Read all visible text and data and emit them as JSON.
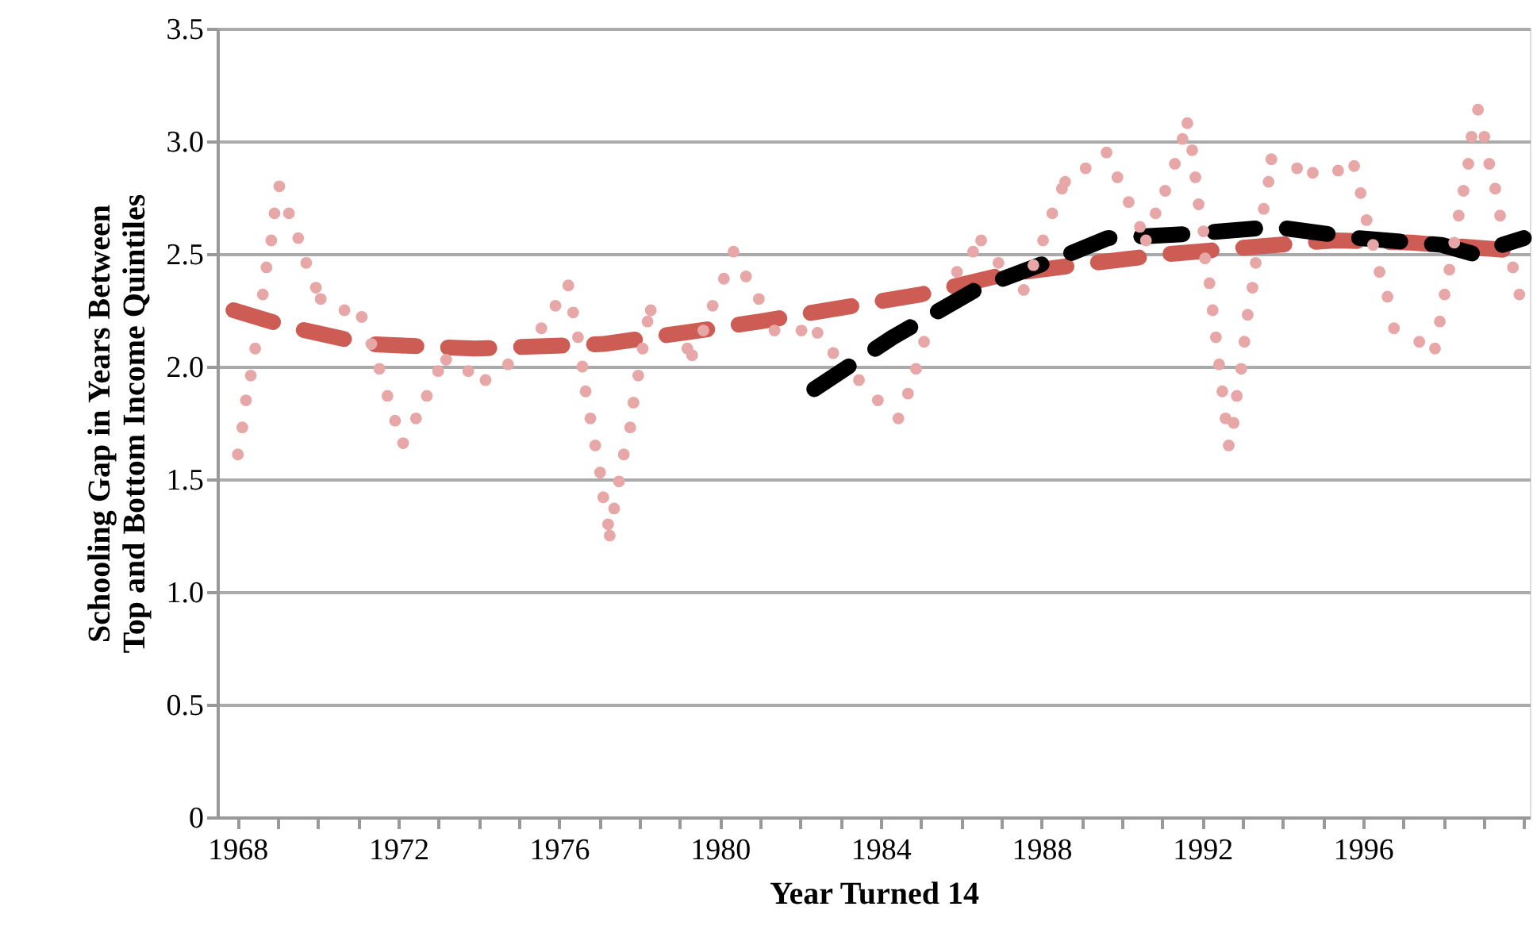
{
  "chart_data": {
    "type": "line",
    "xlabel": "Year Turned 14",
    "ylabel": "Schooling Gap in Years Between\nTop and Bottom Income Quintiles",
    "xlim": [
      1967.5,
      2000.15
    ],
    "xticks": [
      1968,
      {
        "value": 1969,
        "label": null
      },
      {
        "value": 1970,
        "label": null
      },
      {
        "value": 1971,
        "label": null
      },
      1972,
      {
        "value": 1973,
        "label": null
      },
      {
        "value": 1974,
        "label": null
      },
      {
        "value": 1975,
        "label": null
      },
      1976,
      {
        "value": 1977,
        "label": null
      },
      {
        "value": 1978,
        "label": null
      },
      {
        "value": 1979,
        "label": null
      },
      1980,
      {
        "value": 1981,
        "label": null
      },
      {
        "value": 1982,
        "label": null
      },
      {
        "value": 1983,
        "label": null
      },
      1984,
      {
        "value": 1985,
        "label": null
      },
      {
        "value": 1986,
        "label": null
      },
      {
        "value": 1987,
        "label": null
      },
      1988,
      {
        "value": 1989,
        "label": null
      },
      {
        "value": 1990,
        "label": null
      },
      {
        "value": 1991,
        "label": null
      },
      1992,
      {
        "value": 1993,
        "label": null
      },
      {
        "value": 1994,
        "label": null
      },
      {
        "value": 1995,
        "label": null
      },
      1996,
      {
        "value": 1997,
        "label": null
      },
      {
        "value": 1998,
        "label": null
      },
      {
        "value": 1999,
        "label": null
      },
      {
        "value": 2000,
        "label": null
      }
    ],
    "ylim": [
      0,
      3.5
    ],
    "yticks": [
      0,
      0.5,
      {
        "value": 1,
        "label": "1.0"
      },
      1.5,
      {
        "value": 2,
        "label": "2.0"
      },
      2.5,
      {
        "value": 3,
        "label": "3.0"
      },
      3.5
    ],
    "grid": "y",
    "series": [
      {
        "type": "scatter",
        "marker": "circle",
        "color": "#e8a7a7",
        "x": [
          1968.01,
          1968.12,
          1968.21,
          1968.33,
          1968.44,
          1968.63,
          1968.72,
          1968.84,
          1968.92,
          1969.04,
          1969.28,
          1969.51,
          1969.71,
          1969.95,
          1970.07,
          1970.66,
          1971.09,
          1971.33,
          1971.53,
          1971.73,
          1971.92,
          1972.12,
          1972.44,
          1972.71,
          1972.99,
          1973.19,
          1973.74,
          1974.17,
          1974.73,
          1975.56,
          1975.91,
          1976.23,
          1976.35,
          1976.47,
          1976.58,
          1976.66,
          1976.78,
          1976.9,
          1977.02,
          1977.1,
          1977.22,
          1977.26,
          1977.37,
          1977.49,
          1977.61,
          1977.77,
          1977.85,
          1977.97,
          1978.08,
          1978.2,
          1978.28,
          1979.19,
          1979.31,
          1979.59,
          1979.82,
          1980.1,
          1980.34,
          1980.65,
          1980.97,
          1981.36,
          1982.03,
          1982.43,
          1982.82,
          1983.46,
          1983.93,
          1984.44,
          1984.68,
          1984.88,
          1985.08,
          1985.9,
          1986.3,
          1986.5,
          1986.93,
          1987.56,
          1987.8,
          1988.04,
          1988.27,
          1988.51,
          1988.59,
          1989.1,
          1989.62,
          1989.89,
          1990.17,
          1990.45,
          1990.6,
          1990.84,
          1991.08,
          1991.32,
          1991.51,
          1991.63,
          1991.75,
          1991.83,
          1991.91,
          1992.03,
          1992.07,
          1992.18,
          1992.26,
          1992.34,
          1992.42,
          1992.5,
          1992.58,
          1992.66,
          1992.78,
          1992.86,
          1992.97,
          1993.05,
          1993.13,
          1993.25,
          1993.33,
          1993.53,
          1993.65,
          1993.72,
          1994.36,
          1994.75,
          1995.38,
          1995.78,
          1995.94,
          1996.09,
          1996.25,
          1996.41,
          1996.61,
          1996.77,
          1997.4,
          1997.79,
          1997.91,
          1998.03,
          1998.15,
          1998.27,
          1998.38,
          1998.5,
          1998.62,
          1998.7,
          1998.86,
          1999.02,
          1999.14,
          1999.29,
          1999.41,
          1999.73,
          1999.89
        ],
        "values": [
          1.61,
          1.73,
          1.85,
          1.96,
          2.08,
          2.32,
          2.44,
          2.56,
          2.68,
          2.8,
          2.68,
          2.57,
          2.46,
          2.35,
          2.3,
          2.25,
          2.22,
          2.1,
          1.99,
          1.87,
          1.76,
          1.66,
          1.77,
          1.87,
          1.98,
          2.03,
          1.98,
          1.94,
          2.01,
          2.17,
          2.27,
          2.36,
          2.24,
          2.13,
          2.0,
          1.89,
          1.77,
          1.65,
          1.53,
          1.42,
          1.3,
          1.25,
          1.37,
          1.49,
          1.61,
          1.73,
          1.84,
          1.96,
          2.08,
          2.2,
          2.25,
          2.08,
          2.05,
          2.16,
          2.27,
          2.39,
          2.51,
          2.4,
          2.3,
          2.16,
          2.16,
          2.15,
          2.06,
          1.94,
          1.85,
          1.77,
          1.88,
          1.99,
          2.11,
          2.42,
          2.51,
          2.56,
          2.46,
          2.34,
          2.45,
          2.56,
          2.68,
          2.79,
          2.82,
          2.88,
          2.95,
          2.84,
          2.73,
          2.62,
          2.56,
          2.68,
          2.78,
          2.9,
          3.01,
          3.08,
          2.96,
          2.84,
          2.72,
          2.6,
          2.48,
          2.37,
          2.25,
          2.13,
          2.01,
          1.89,
          1.77,
          1.65,
          1.75,
          1.87,
          1.99,
          2.11,
          2.23,
          2.35,
          2.46,
          2.7,
          2.82,
          2.92,
          2.88,
          2.86,
          2.87,
          2.89,
          2.77,
          2.65,
          2.54,
          2.42,
          2.31,
          2.17,
          2.11,
          2.08,
          2.2,
          2.32,
          2.43,
          2.55,
          2.67,
          2.78,
          2.9,
          3.02,
          3.14,
          3.02,
          2.9,
          2.79,
          2.67,
          2.44,
          2.32
        ]
      },
      {
        "line_style": "dashed",
        "color": "#cd5c55",
        "x": [
          1967.9,
          1969.2,
          1971.2,
          1973.9,
          1977.1,
          1979.1,
          1981.0,
          1983.0,
          1985.0,
          1987.1,
          1989.3,
          1991.2,
          1993.2,
          1995.3,
          1997.2,
          2000.1
        ],
        "values": [
          2.25,
          2.18,
          2.1,
          2.08,
          2.1,
          2.15,
          2.2,
          2.26,
          2.32,
          2.41,
          2.46,
          2.5,
          2.53,
          2.56,
          2.55,
          2.51
        ]
      },
      {
        "line_style": "dashed",
        "color": "#000000",
        "x": [
          1982.35,
          1984.3,
          1986.45,
          1988.55,
          1989.65,
          1991.8,
          1993.8,
          1995.9,
          1997.95,
          1998.75,
          2000.0
        ],
        "values": [
          1.9,
          2.13,
          2.35,
          2.49,
          2.57,
          2.59,
          2.62,
          2.57,
          2.54,
          2.5,
          2.57
        ]
      }
    ]
  }
}
